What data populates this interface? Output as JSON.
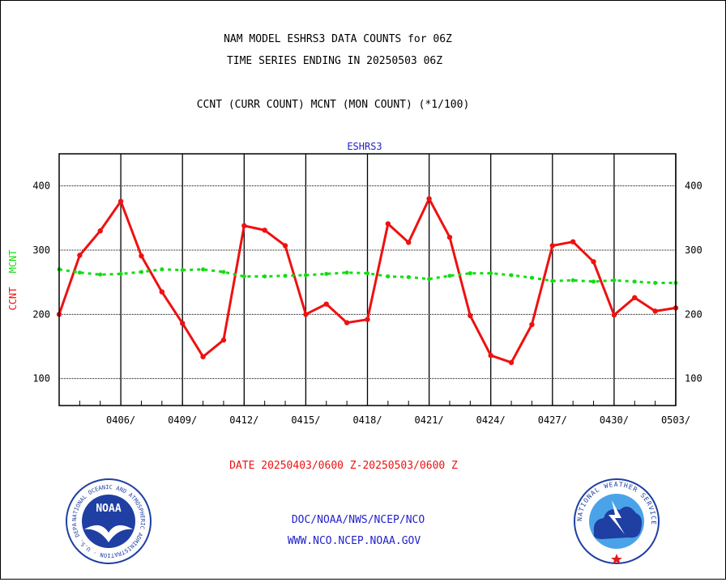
{
  "header": {
    "title_line1": "NAM MODEL ESHRS3 DATA COUNTS for 06Z",
    "title_line2": "TIME SERIES ENDING IN 20250503 06Z",
    "subtitle": "CCNT (CURR COUNT) MCNT (MON COUNT) (*1/100)"
  },
  "footer": {
    "date_range": "DATE 20250403/0600 Z-20250503/0600 Z",
    "org_path": "DOC/NOAA/NWS/NCEP/NCO",
    "website": "WWW.NCO.NCEP.NOAA.GOV"
  },
  "logos": {
    "noaa": {
      "center_text": "NOAA",
      "ring_text": "NATIONAL OCEANIC AND ATMOSPHERIC ADMINISTRATION · U.S. DEPARTMENT OF COMMERCE ·",
      "colors": {
        "ring": "#ffffff",
        "sky": "#1f3fa3",
        "bird": "#ffffff"
      }
    },
    "nws": {
      "ring_text": "NATIONAL WEATHER SERVICE",
      "colors": {
        "ring": "#1f3fa3",
        "inner": "#4aa3e8",
        "cloud": "#1f3fa3",
        "star": "#e31b1b"
      }
    }
  },
  "colors": {
    "ccnt": "#ee1111",
    "mcnt": "#11dd11",
    "footer_red": "#ee1111",
    "footer_blue": "#2222cc"
  },
  "chart_data": {
    "type": "line",
    "title": "ESHRS3",
    "ylabel": "CCNT  MCNT",
    "ylabel_parts": [
      "CCNT",
      "MCNT"
    ],
    "ylim": [
      58,
      450
    ],
    "xlim": [
      0,
      30
    ],
    "yticks": [
      100,
      200,
      300,
      400
    ],
    "yticks_right": [
      100,
      200,
      300,
      400
    ],
    "xticks": [
      {
        "x": 3,
        "label": "0406/"
      },
      {
        "x": 6,
        "label": "0409/"
      },
      {
        "x": 9,
        "label": "0412/"
      },
      {
        "x": 12,
        "label": "0415/"
      },
      {
        "x": 15,
        "label": "0418/"
      },
      {
        "x": 18,
        "label": "0421/"
      },
      {
        "x": 21,
        "label": "0424/"
      },
      {
        "x": 24,
        "label": "0427/"
      },
      {
        "x": 27,
        "label": "0430/"
      },
      {
        "x": 30,
        "label": "0503/"
      }
    ],
    "x_dates": [
      "0403",
      "0404",
      "0405",
      "0406",
      "0407",
      "0408",
      "0409",
      "0410",
      "0411",
      "0412",
      "0413",
      "0414",
      "0415",
      "0416",
      "0417",
      "0418",
      "0419",
      "0420",
      "0421",
      "0422",
      "0423",
      "0424",
      "0425",
      "0426",
      "0427",
      "0428",
      "0429",
      "0430",
      "0501",
      "0502",
      "0503"
    ],
    "grid": true,
    "series": [
      {
        "name": "CCNT",
        "color": "#ee1111",
        "style": "solid",
        "values": [
          200,
          292,
          330,
          376,
          291,
          235,
          186,
          134,
          160,
          338,
          331,
          307,
          200,
          216,
          187,
          192,
          341,
          312,
          380,
          320,
          198,
          136,
          125,
          184,
          307,
          313,
          282,
          199,
          226,
          205,
          210
        ]
      },
      {
        "name": "MCNT",
        "color": "#11dd11",
        "style": "dotted",
        "values": [
          270,
          265,
          262,
          263,
          266,
          270,
          269,
          270,
          266,
          259,
          259,
          260,
          261,
          263,
          265,
          264,
          259,
          258,
          255,
          260,
          264,
          264,
          261,
          257,
          252,
          253,
          251,
          253,
          251,
          249,
          249
        ]
      }
    ]
  }
}
